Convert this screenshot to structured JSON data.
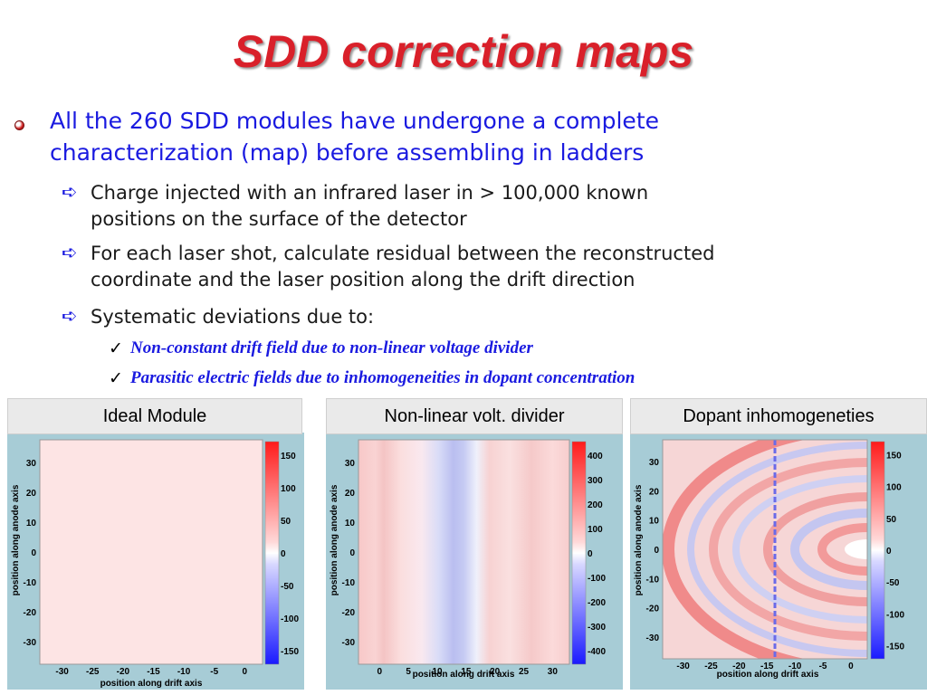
{
  "title": "SDD correction maps",
  "bullet": {
    "text_line1": "All the 260 SDD modules have undergone a complete",
    "text_line2": "characterization (map) before assembling in ladders",
    "subbullets": [
      {
        "line1": "Charge injected with an infrared laser in > 100,000 known",
        "line2": "positions on the surface of the detector"
      },
      {
        "line1": "For each laser shot, calculate residual between the reconstructed",
        "line2": "coordinate and the laser position along the drift direction"
      },
      {
        "line1": "Systematic deviations due to:",
        "line2": ""
      }
    ],
    "checks": [
      "Non-constant drift field due to non-linear voltage divider",
      "Parasitic electric fields due to inhomogeneities in dopant concentration"
    ]
  },
  "panels": [
    {
      "label": "Ideal Module",
      "ylabel": "position along anode axis",
      "xlabel": "position along drift axis",
      "yticks": [
        "30",
        "20",
        "10",
        "0",
        "-10",
        "-20",
        "-30"
      ],
      "xticks": [
        "-30",
        "-25",
        "-20",
        "-15",
        "-10",
        "-5",
        "0"
      ],
      "cticks": [
        "150",
        "100",
        "50",
        "0",
        "-50",
        "-100",
        "-150"
      ]
    },
    {
      "label": "Non-linear volt. divider",
      "ylabel": "position along anode axis",
      "xlabel": "position along drift axis",
      "yticks": [
        "30",
        "20",
        "10",
        "0",
        "-10",
        "-20",
        "-30"
      ],
      "xticks": [
        "0",
        "5",
        "10",
        "15",
        "20",
        "25",
        "30"
      ],
      "cticks": [
        "400",
        "300",
        "200",
        "100",
        "0",
        "-100",
        "-200",
        "-300",
        "-400"
      ]
    },
    {
      "label": "Dopant inhomogeneties",
      "ylabel": "position along anode axis",
      "xlabel": "position along drift axis",
      "yticks": [
        "30",
        "20",
        "10",
        "0",
        "-10",
        "-20",
        "-30"
      ],
      "xticks": [
        "-30",
        "-25",
        "-20",
        "-15",
        "-10",
        "-5",
        "0"
      ],
      "cticks": [
        "150",
        "100",
        "50",
        "0",
        "-50",
        "-100",
        "-150"
      ]
    }
  ]
}
